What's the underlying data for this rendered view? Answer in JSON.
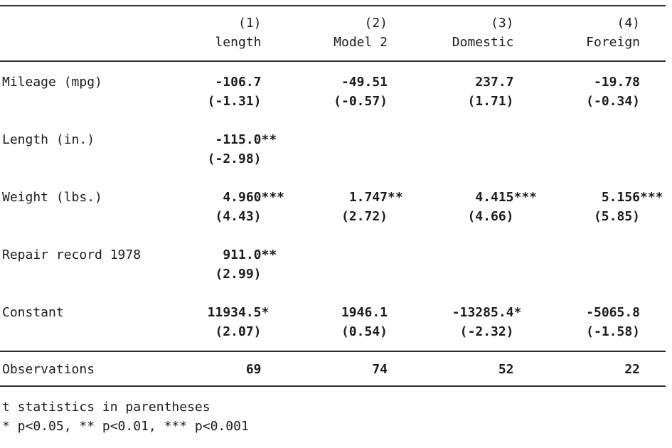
{
  "table": {
    "header": {
      "cols": [
        {
          "num": "(1)",
          "label": "length"
        },
        {
          "num": "(2)",
          "label": "Model 2"
        },
        {
          "num": "(3)",
          "label": "Domestic"
        },
        {
          "num": "(4)",
          "label": "Foreign"
        }
      ]
    },
    "rows": [
      {
        "label": "Mileage (mpg)",
        "cells": [
          {
            "coef": "-106.7",
            "stars": "",
            "t": "(-1.31)"
          },
          {
            "coef": "-49.51",
            "stars": "",
            "t": "(-0.57)"
          },
          {
            "coef": "237.7",
            "stars": "",
            "t": "(1.71)"
          },
          {
            "coef": "-19.78",
            "stars": "",
            "t": "(-0.34)"
          }
        ]
      },
      {
        "label": "Length (in.)",
        "cells": [
          {
            "coef": "-115.0",
            "stars": "**",
            "t": "(-2.98)"
          },
          {
            "coef": "",
            "stars": "",
            "t": ""
          },
          {
            "coef": "",
            "stars": "",
            "t": ""
          },
          {
            "coef": "",
            "stars": "",
            "t": ""
          }
        ]
      },
      {
        "label": "Weight (lbs.)",
        "cells": [
          {
            "coef": "4.960",
            "stars": "***",
            "t": "(4.43)"
          },
          {
            "coef": "1.747",
            "stars": "**",
            "t": "(2.72)"
          },
          {
            "coef": "4.415",
            "stars": "***",
            "t": "(4.66)"
          },
          {
            "coef": "5.156",
            "stars": "***",
            "t": "(5.85)"
          }
        ]
      },
      {
        "label": "Repair record 1978",
        "cells": [
          {
            "coef": "911.0",
            "stars": "**",
            "t": "(2.99)"
          },
          {
            "coef": "",
            "stars": "",
            "t": ""
          },
          {
            "coef": "",
            "stars": "",
            "t": ""
          },
          {
            "coef": "",
            "stars": "",
            "t": ""
          }
        ]
      },
      {
        "label": "Constant",
        "cells": [
          {
            "coef": "11934.5",
            "stars": "*",
            "t": "(2.07)"
          },
          {
            "coef": "1946.1",
            "stars": "",
            "t": "(0.54)"
          },
          {
            "coef": "-13285.4",
            "stars": "*",
            "t": "(-2.32)"
          },
          {
            "coef": "-5065.8",
            "stars": "",
            "t": "(-1.58)"
          }
        ]
      }
    ],
    "observations": {
      "label": "Observations",
      "values": [
        "69",
        "74",
        "52",
        "22"
      ]
    },
    "notes": {
      "line1": "t statistics in parentheses",
      "line2": "* p<0.05, ** p<0.01, *** p<0.001"
    }
  }
}
